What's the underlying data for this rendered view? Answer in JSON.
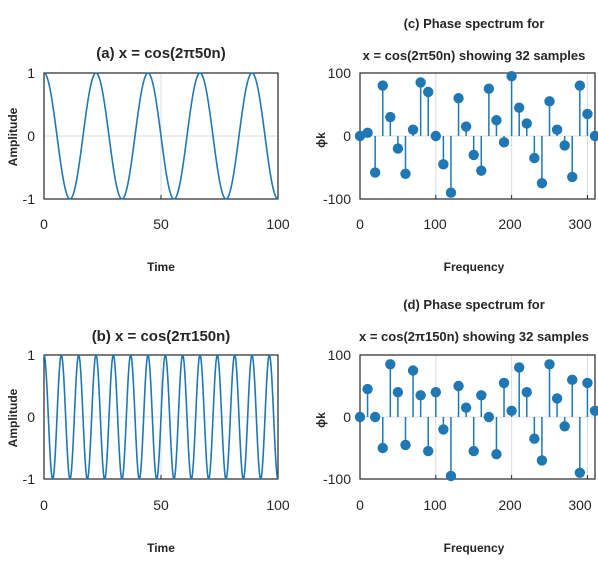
{
  "colors": {
    "series": "#1f77b4",
    "axis": "#262626",
    "grid": "#dcdcdc",
    "background": "#ffffff"
  },
  "panels": [
    {
      "id": "a",
      "title_lines": [
        "(a)  x = cos(2π50n)"
      ],
      "xlabel": "Time",
      "ylabel": "Amplitude",
      "xticks": [
        "0",
        "50",
        "100"
      ],
      "yticks": [
        "1",
        "0",
        "-1"
      ]
    },
    {
      "id": "c",
      "title_lines": [
        "(c)  Phase spectrum for",
        "x = cos(2π50n) showing 32 samples"
      ],
      "xlabel": "Frequency",
      "ylabel": "ϕk",
      "xticks": [
        "0",
        "100",
        "200",
        "300"
      ],
      "yticks": [
        "100",
        "0",
        "-100"
      ]
    },
    {
      "id": "b",
      "title_lines": [
        "(b)  x = cos(2π150n)"
      ],
      "xlabel": "Time",
      "ylabel": "Amplitude",
      "xticks": [
        "0",
        "50",
        "100"
      ],
      "yticks": [
        "1",
        "0",
        "-1"
      ]
    },
    {
      "id": "d",
      "title_lines": [
        "(d)  Phase spectrum for",
        "x = cos(2π150n) showing 32 samples"
      ],
      "xlabel": "Frequency",
      "ylabel": "ϕk",
      "xticks": [
        "0",
        "100",
        "200",
        "300"
      ],
      "yticks": [
        "100",
        "0",
        "-100"
      ]
    }
  ],
  "chart_data": [
    {
      "panel": "a",
      "type": "line",
      "title": "(a)  x = cos(2π50n)",
      "xlabel": "Time",
      "ylabel": "Amplitude",
      "xlim": [
        0,
        100
      ],
      "ylim": [
        -1,
        1
      ],
      "grid": true,
      "function": "cos",
      "cycles": 4.5
    },
    {
      "panel": "c",
      "type": "scatter",
      "subtype": "stem",
      "title": "(c)  Phase spectrum for x = cos(2π50n) showing 32 samples",
      "xlabel": "Frequency",
      "ylabel": "ϕk",
      "xlim": [
        0,
        310
      ],
      "ylim": [
        -100,
        100
      ],
      "grid": true,
      "x": [
        0,
        10,
        20,
        30,
        40,
        50,
        60,
        70,
        80,
        90,
        100,
        110,
        120,
        130,
        140,
        150,
        160,
        170,
        180,
        190,
        200,
        210,
        220,
        230,
        240,
        250,
        260,
        270,
        280,
        290,
        300,
        310
      ],
      "values": [
        0,
        5,
        -58,
        80,
        30,
        -20,
        -60,
        10,
        85,
        70,
        0,
        -45,
        -90,
        60,
        15,
        -30,
        -55,
        75,
        25,
        -10,
        95,
        45,
        20,
        -35,
        -75,
        55,
        10,
        -15,
        -65,
        80,
        35,
        0
      ]
    },
    {
      "panel": "b",
      "type": "line",
      "title": "(b)  x = cos(2π150n)",
      "xlabel": "Time",
      "ylabel": "Amplitude",
      "xlim": [
        0,
        100
      ],
      "ylim": [
        -1,
        1
      ],
      "grid": true,
      "function": "cos",
      "cycles": 13.5
    },
    {
      "panel": "d",
      "type": "scatter",
      "subtype": "stem",
      "title": "(d)  Phase spectrum for x = cos(2π150n) showing 32 samples",
      "xlabel": "Frequency",
      "ylabel": "ϕk",
      "xlim": [
        0,
        310
      ],
      "ylim": [
        -100,
        100
      ],
      "grid": true,
      "x": [
        0,
        10,
        20,
        30,
        40,
        50,
        60,
        70,
        80,
        90,
        100,
        110,
        120,
        130,
        140,
        150,
        160,
        170,
        180,
        190,
        200,
        210,
        220,
        230,
        240,
        250,
        260,
        270,
        280,
        290,
        300,
        310
      ],
      "values": [
        0,
        45,
        0,
        -50,
        85,
        40,
        -45,
        75,
        35,
        -55,
        40,
        -20,
        -95,
        50,
        15,
        -55,
        35,
        0,
        -60,
        55,
        10,
        80,
        40,
        -35,
        -70,
        85,
        30,
        -15,
        60,
        -90,
        55,
        10
      ]
    }
  ]
}
